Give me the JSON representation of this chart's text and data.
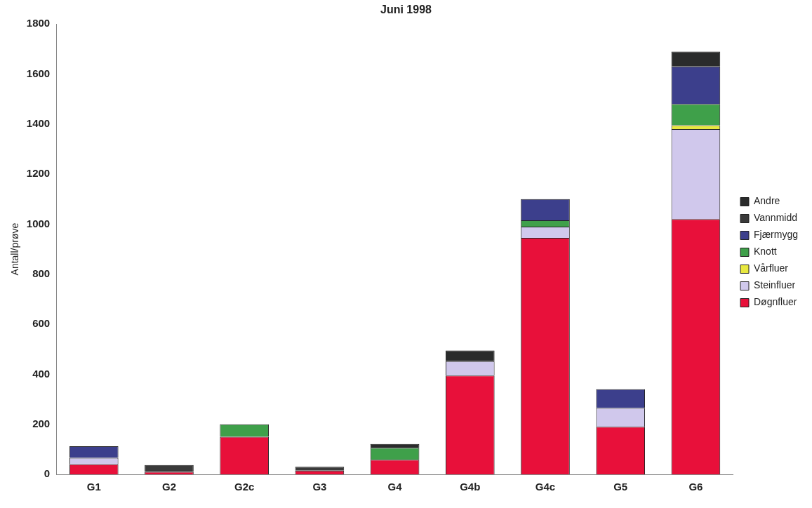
{
  "chart_data": {
    "type": "bar",
    "title": "Juni 1998",
    "ylabel": "Antall/prøve",
    "stacked": true,
    "legend": "right",
    "grid": false,
    "categories": [
      "G1",
      "G2",
      "G2c",
      "G3",
      "G4",
      "G4b",
      "G4c",
      "G5",
      "G6"
    ],
    "ylim": [
      0,
      1800
    ],
    "yticks": [
      0,
      200,
      400,
      600,
      800,
      1000,
      1200,
      1400,
      1600,
      1800
    ],
    "series": [
      {
        "name": "Døgnfluer",
        "color": "#e8103a",
        "values": [
          40,
          10,
          150,
          15,
          58,
          395,
          945,
          190,
          1020
        ]
      },
      {
        "name": "Steinfluer",
        "color": "#d0c8ec",
        "values": [
          26,
          0,
          0,
          0,
          0,
          57,
          45,
          75,
          360
        ]
      },
      {
        "name": "Vårfluer",
        "color": "#e8e840",
        "values": [
          0,
          0,
          0,
          0,
          0,
          0,
          0,
          0,
          15
        ]
      },
      {
        "name": "Knott",
        "color": "#3fa04a",
        "values": [
          0,
          0,
          50,
          0,
          48,
          0,
          25,
          0,
          85
        ]
      },
      {
        "name": "Fjærmygg",
        "color": "#3c3f8c",
        "values": [
          46,
          0,
          0,
          0,
          0,
          0,
          85,
          75,
          150
        ]
      },
      {
        "name": "Vannmidd",
        "color": "#3a3a3a",
        "values": [
          0,
          27,
          0,
          15,
          0,
          0,
          0,
          0,
          0
        ]
      },
      {
        "name": "Andre",
        "color": "#2a2b2b",
        "values": [
          0,
          0,
          0,
          0,
          15,
          43,
          0,
          0,
          60
        ]
      }
    ]
  }
}
